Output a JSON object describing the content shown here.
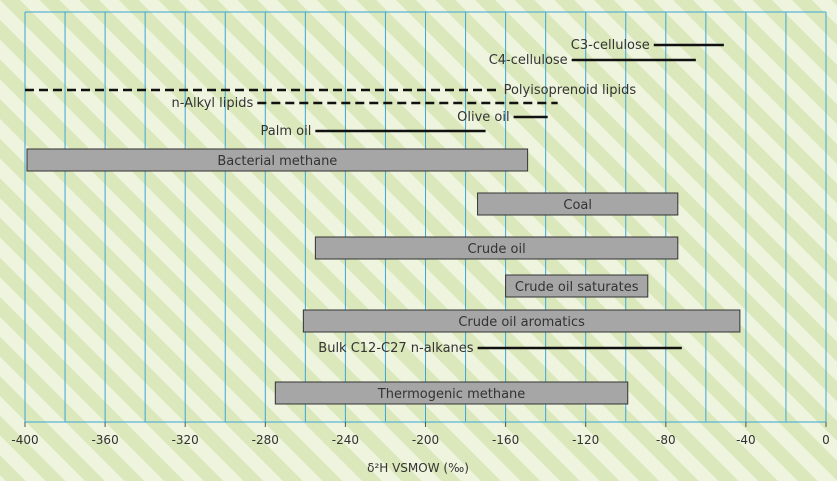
{
  "chart_data": {
    "type": "range",
    "xlabel": "δ²H VSMOW (‰)",
    "xlim": [
      -400,
      0
    ],
    "x_ticks": [
      -400,
      -360,
      -320,
      -280,
      -240,
      -200,
      -160,
      -120,
      -80,
      -40,
      0
    ],
    "grid": true,
    "colors": {
      "grid": "#3aa6d8",
      "bar_fill": "#a6a6a6",
      "bar_stroke": "#333333",
      "line": "#111111",
      "stripe_light": "#eef4dd",
      "stripe_dark": "#dbe8bb"
    },
    "series": [
      {
        "label": "C3-cellulose",
        "min": -86,
        "max": -51,
        "style": "line",
        "label_side": "left"
      },
      {
        "label": "C4-cellulose",
        "min": -127,
        "max": -65,
        "style": "line",
        "label_side": "left"
      },
      {
        "label": "Polyisoprenoid lipids",
        "min": -400,
        "max": -164,
        "style": "dashed",
        "label_side": "right"
      },
      {
        "label": "n-Alkyl lipids",
        "min": -284,
        "max": -134,
        "style": "dashed",
        "label_side": "left"
      },
      {
        "label": "Olive oil",
        "min": -156,
        "max": -139,
        "style": "line",
        "label_side": "left"
      },
      {
        "label": "Palm oil",
        "min": -255,
        "max": -170,
        "style": "line",
        "label_side": "left"
      },
      {
        "label": "Bacterial methane",
        "min": -399,
        "max": -149,
        "style": "bar",
        "label_side": "center"
      },
      {
        "label": "Coal",
        "min": -174,
        "max": -74,
        "style": "bar",
        "label_side": "center"
      },
      {
        "label": "Crude oil",
        "min": -255,
        "max": -74,
        "style": "bar",
        "label_side": "center"
      },
      {
        "label": "Crude oil saturates",
        "min": -160,
        "max": -89,
        "style": "bar",
        "label_side": "center"
      },
      {
        "label": "Crude oil aromatics",
        "min": -261,
        "max": -43,
        "style": "bar",
        "label_side": "center"
      },
      {
        "label": "Bulk C12-C27 n-alkanes",
        "min": -174,
        "max": -72,
        "style": "line",
        "label_side": "left"
      },
      {
        "label": "Thermogenic methane",
        "min": -275,
        "max": -99,
        "style": "bar",
        "label_side": "center"
      }
    ]
  }
}
